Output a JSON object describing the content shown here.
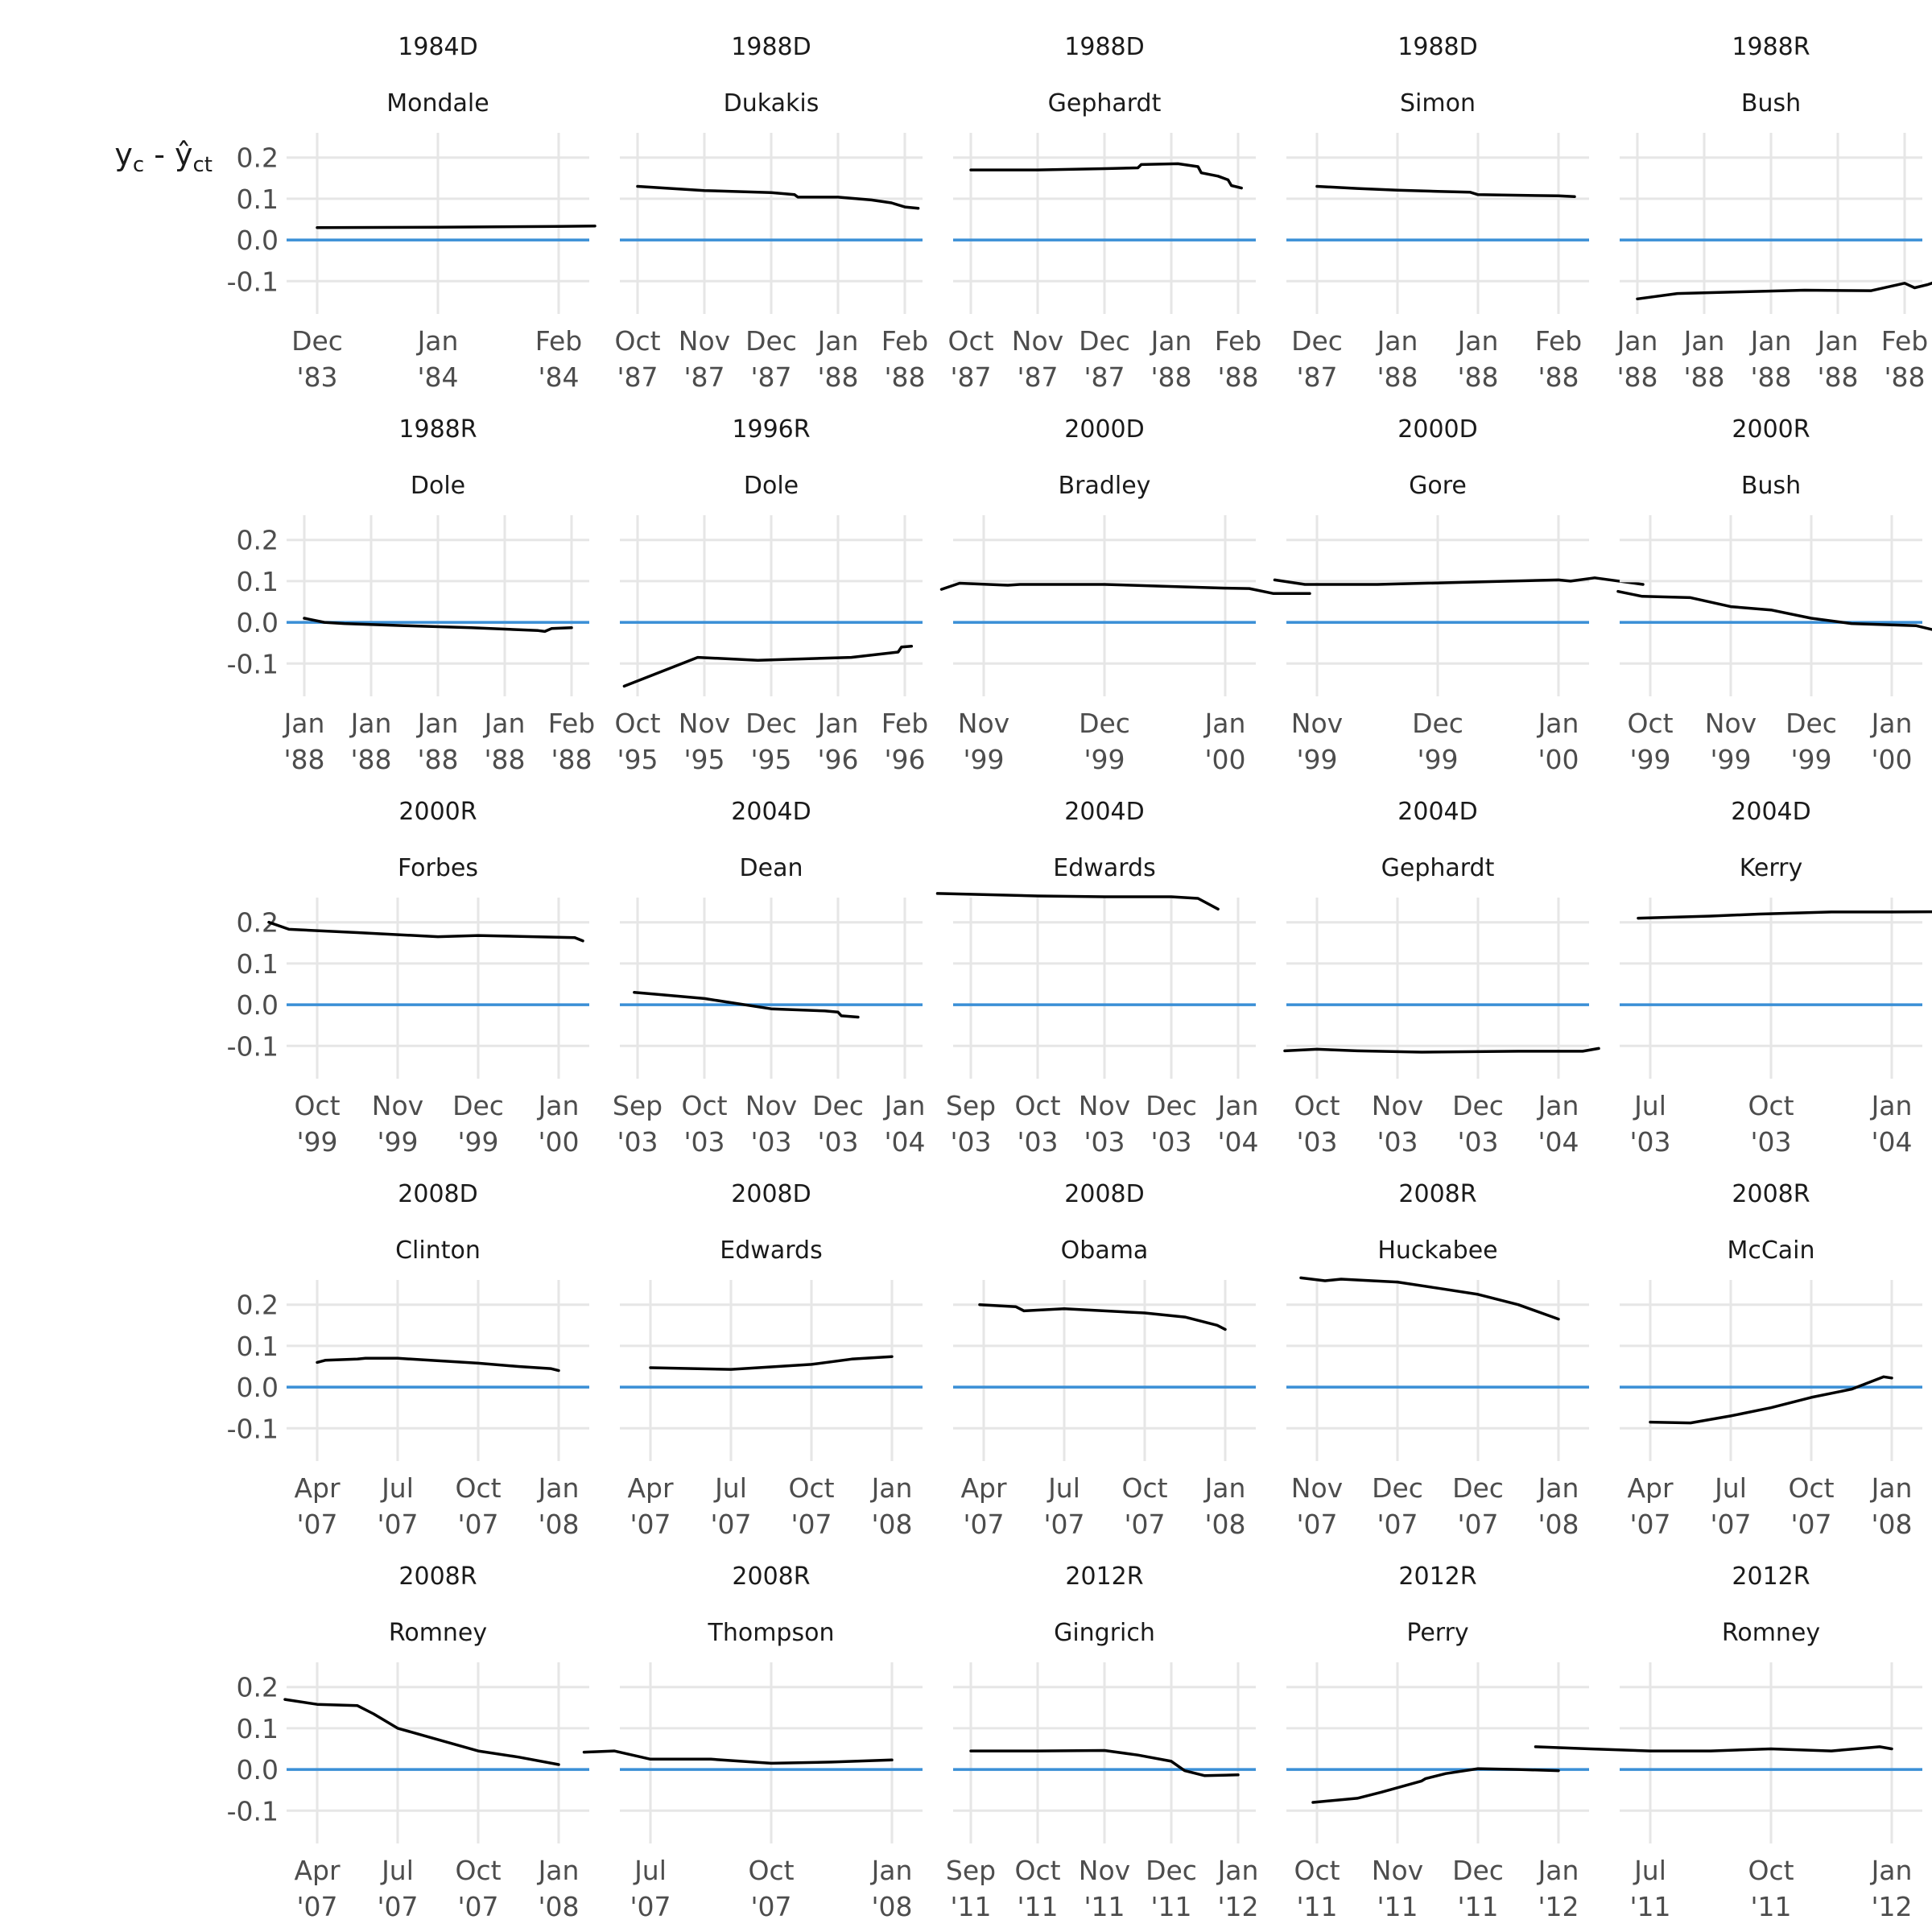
{
  "chart_data": {
    "type": "line",
    "layout": "small-multiples",
    "ylabel": "yₑ - ŷₑₜ",
    "ylabel_parts": {
      "base": "y",
      "sub1": "c",
      "mid": " - ",
      "hat": "ŷ",
      "sub2": "ct"
    },
    "y_ticks": [
      0.2,
      0.1,
      0.0,
      -0.1
    ],
    "y_tick_labels": [
      "0.2",
      "0.1",
      "0.0",
      "-0.1"
    ],
    "ylim": [
      -0.16,
      0.26
    ],
    "reference_line": {
      "y": 0,
      "color": "#3a8fd6"
    },
    "line_color": "#000000",
    "grid": true,
    "panels": [
      {
        "race": "1984D",
        "candidate": "Mondale",
        "xticks": [
          "Dec\n'83",
          "Jan\n'84",
          "Feb\n'84"
        ],
        "x": [
          0,
          1,
          2,
          2.3
        ],
        "y": [
          0.03,
          0.031,
          0.033,
          0.034
        ]
      },
      {
        "race": "1988D",
        "candidate": "Dukakis",
        "xticks": [
          "Oct\n'87",
          "Nov\n'87",
          "Dec\n'87",
          "Jan\n'88",
          "Feb\n'88"
        ],
        "x": [
          0,
          1,
          2,
          2.35,
          2.4,
          3,
          3.5,
          3.8,
          4.0,
          4.2
        ],
        "y": [
          0.13,
          0.12,
          0.115,
          0.11,
          0.104,
          0.104,
          0.097,
          0.09,
          0.08,
          0.077
        ]
      },
      {
        "race": "1988D",
        "candidate": "Gephardt",
        "xticks": [
          "Oct\n'87",
          "Nov\n'87",
          "Dec\n'87",
          "Jan\n'88",
          "Feb\n'88"
        ],
        "x": [
          0,
          1,
          2,
          2.5,
          2.55,
          3.1,
          3.4,
          3.45,
          3.7,
          3.85,
          3.9,
          4.05
        ],
        "y": [
          0.17,
          0.17,
          0.173,
          0.175,
          0.183,
          0.185,
          0.178,
          0.163,
          0.155,
          0.146,
          0.132,
          0.126
        ]
      },
      {
        "race": "1988D",
        "candidate": "Simon",
        "xticks": [
          "Dec\n'87",
          "Jan\n'88",
          "Jan\n'88",
          "Feb\n'88"
        ],
        "x": [
          0,
          0.5,
          1,
          1.5,
          1.9,
          2,
          2.3,
          3.0,
          3.2
        ],
        "y": [
          0.13,
          0.125,
          0.121,
          0.118,
          0.116,
          0.11,
          0.109,
          0.107,
          0.105
        ]
      },
      {
        "race": "1988R",
        "candidate": "Bush",
        "xticks": [
          "Jan\n'88",
          "Jan\n'88",
          "Jan\n'88",
          "Jan\n'88",
          "Feb\n'88"
        ],
        "x": [
          0,
          0.6,
          1.5,
          2.5,
          3.5,
          4.0,
          4.15,
          4.35,
          4.5
        ],
        "y": [
          -0.143,
          -0.13,
          -0.126,
          -0.122,
          -0.123,
          -0.105,
          -0.116,
          -0.108,
          -0.1
        ]
      },
      {
        "race": "1988R",
        "candidate": "Dole",
        "xticks": [
          "Jan\n'88",
          "Jan\n'88",
          "Jan\n'88",
          "Jan\n'88",
          "Feb\n'88"
        ],
        "x": [
          0,
          0.3,
          0.6,
          1.5,
          2.5,
          3.5,
          3.6,
          3.7,
          4.0
        ],
        "y": [
          0.01,
          0.0,
          -0.003,
          -0.008,
          -0.013,
          -0.02,
          -0.022,
          -0.015,
          -0.013
        ]
      },
      {
        "race": "1996R",
        "candidate": "Dole",
        "xticks": [
          "Oct\n'95",
          "Nov\n'95",
          "Dec\n'95",
          "Jan\n'96",
          "Feb\n'96"
        ],
        "x": [
          -0.2,
          0.9,
          1.8,
          3.2,
          3.9,
          3.95,
          4.1
        ],
        "y": [
          -0.155,
          -0.085,
          -0.092,
          -0.085,
          -0.072,
          -0.06,
          -0.058
        ]
      },
      {
        "race": "2000D",
        "candidate": "Bradley",
        "xticks": [
          "Nov\n'99",
          "Dec\n'99",
          "Jan\n'00"
        ],
        "x": [
          -0.35,
          -0.2,
          0.2,
          0.3,
          1.0,
          2.0,
          2.2,
          2.4,
          2.7
        ],
        "y": [
          0.08,
          0.095,
          0.09,
          0.092,
          0.092,
          0.083,
          0.082,
          0.07,
          0.07
        ]
      },
      {
        "race": "2000D",
        "candidate": "Gore",
        "xticks": [
          "Nov\n'99",
          "Dec\n'99",
          "Jan\n'00"
        ],
        "x": [
          -0.35,
          -0.1,
          0.5,
          2.0,
          2.1,
          2.3,
          2.7
        ],
        "y": [
          0.103,
          0.092,
          0.092,
          0.103,
          0.1,
          0.108,
          0.092
        ]
      },
      {
        "race": "2000R",
        "candidate": "Bush",
        "xticks": [
          "Oct\n'99",
          "Nov\n'99",
          "Dec\n'99",
          "Jan\n'00"
        ],
        "x": [
          -0.4,
          -0.1,
          0.5,
          1.0,
          1.5,
          2.0,
          2.5,
          3.3,
          3.6
        ],
        "y": [
          0.075,
          0.063,
          0.06,
          0.038,
          0.03,
          0.01,
          -0.003,
          -0.008,
          -0.022
        ]
      },
      {
        "race": "2000R",
        "candidate": "Forbes",
        "xticks": [
          "Oct\n'99",
          "Nov\n'99",
          "Dec\n'99",
          "Jan\n'00"
        ],
        "x": [
          -0.6,
          -0.35,
          0.5,
          1.5,
          2.0,
          3.2,
          3.3
        ],
        "y": [
          0.2,
          0.183,
          0.175,
          0.165,
          0.168,
          0.163,
          0.155
        ]
      },
      {
        "race": "2004D",
        "candidate": "Dean",
        "xticks": [
          "Sep\n'03",
          "Oct\n'03",
          "Nov\n'03",
          "Dec\n'03",
          "Jan\n'04"
        ],
        "x": [
          -0.05,
          0.3,
          1.0,
          2.0,
          2.8,
          3.0,
          3.05,
          3.3
        ],
        "y": [
          0.03,
          0.025,
          0.015,
          -0.01,
          -0.015,
          -0.018,
          -0.027,
          -0.03
        ]
      },
      {
        "race": "2004D",
        "candidate": "Edwards",
        "xticks": [
          "Sep\n'03",
          "Oct\n'03",
          "Nov\n'03",
          "Dec\n'03",
          "Jan\n'04"
        ],
        "x": [
          -0.5,
          0,
          1.0,
          2.0,
          3.0,
          3.4,
          3.7
        ],
        "y": [
          0.27,
          0.268,
          0.264,
          0.262,
          0.262,
          0.258,
          0.232
        ]
      },
      {
        "race": "2004D",
        "candidate": "Gephardt",
        "xticks": [
          "Oct\n'03",
          "Nov\n'03",
          "Dec\n'03",
          "Jan\n'04"
        ],
        "x": [
          -0.4,
          0,
          0.5,
          1.3,
          2.5,
          3.3,
          3.5
        ],
        "y": [
          -0.112,
          -0.108,
          -0.112,
          -0.115,
          -0.113,
          -0.113,
          -0.106
        ]
      },
      {
        "race": "2004D",
        "candidate": "Kerry",
        "xticks": [
          "Jul\n'03",
          "Oct\n'03",
          "Jan\n'04"
        ],
        "x": [
          -0.1,
          0.5,
          0.9,
          1.5,
          2.0,
          3.0,
          3.2,
          3.3
        ],
        "y": [
          0.21,
          0.215,
          0.22,
          0.225,
          0.225,
          0.227,
          0.223,
          0.21
        ]
      },
      {
        "race": "2008D",
        "candidate": "Clinton",
        "xticks": [
          "Apr\n'07",
          "Jul\n'07",
          "Oct\n'07",
          "Jan\n'08"
        ],
        "x": [
          0,
          0.1,
          0.5,
          0.6,
          1.0,
          2.0,
          2.5,
          2.9,
          3.0
        ],
        "y": [
          0.06,
          0.065,
          0.068,
          0.07,
          0.07,
          0.058,
          0.05,
          0.045,
          0.04
        ]
      },
      {
        "race": "2008D",
        "candidate": "Edwards",
        "xticks": [
          "Apr\n'07",
          "Jul\n'07",
          "Oct\n'07",
          "Jan\n'08"
        ],
        "x": [
          0,
          1.0,
          2.0,
          2.5,
          3.0
        ],
        "y": [
          0.047,
          0.043,
          0.055,
          0.068,
          0.074
        ]
      },
      {
        "race": "2008D",
        "candidate": "Obama",
        "xticks": [
          "Apr\n'07",
          "Jul\n'07",
          "Oct\n'07",
          "Jan\n'08"
        ],
        "x": [
          -0.05,
          0.4,
          0.5,
          1.0,
          2.0,
          2.5,
          2.9,
          3.0
        ],
        "y": [
          0.2,
          0.195,
          0.185,
          0.19,
          0.18,
          0.17,
          0.15,
          0.14
        ]
      },
      {
        "race": "2008R",
        "candidate": "Huckabee",
        "xticks": [
          "Nov\n'07",
          "Dec\n'07",
          "Dec\n'07",
          "Jan\n'08"
        ],
        "x": [
          -0.2,
          0.1,
          0.3,
          1.0,
          1.5,
          2.0,
          2.5,
          3.0
        ],
        "y": [
          0.265,
          0.258,
          0.262,
          0.255,
          0.24,
          0.225,
          0.2,
          0.165
        ]
      },
      {
        "race": "2008R",
        "candidate": "McCain",
        "xticks": [
          "Apr\n'07",
          "Jul\n'07",
          "Oct\n'07",
          "Jan\n'08"
        ],
        "x": [
          0,
          0.5,
          1.0,
          1.5,
          2.0,
          2.5,
          2.9,
          3.0
        ],
        "y": [
          -0.085,
          -0.087,
          -0.07,
          -0.05,
          -0.025,
          -0.005,
          0.025,
          0.022
        ]
      },
      {
        "race": "2008R",
        "candidate": "Romney",
        "xticks": [
          "Apr\n'07",
          "Jul\n'07",
          "Oct\n'07",
          "Jan\n'08"
        ],
        "x": [
          -0.4,
          0,
          0.5,
          0.7,
          1.0,
          2.0,
          2.5,
          3.0
        ],
        "y": [
          0.17,
          0.158,
          0.155,
          0.135,
          0.1,
          0.045,
          0.03,
          0.012
        ]
      },
      {
        "race": "2008R",
        "candidate": "Thompson",
        "xticks": [
          "Jul\n'07",
          "Oct\n'07",
          "Jan\n'08"
        ],
        "x": [
          -0.55,
          -0.3,
          0,
          0.5,
          1.0,
          1.5,
          2.0
        ],
        "y": [
          0.042,
          0.045,
          0.025,
          0.025,
          0.015,
          0.018,
          0.023
        ]
      },
      {
        "race": "2012R",
        "candidate": "Gingrich",
        "xticks": [
          "Sep\n'11",
          "Oct\n'11",
          "Nov\n'11",
          "Dec\n'11",
          "Jan\n'12"
        ],
        "x": [
          0,
          1.0,
          2.0,
          2.5,
          3.0,
          3.2,
          3.5,
          4.0
        ],
        "y": [
          0.045,
          0.045,
          0.046,
          0.035,
          0.02,
          -0.003,
          -0.015,
          -0.013
        ]
      },
      {
        "race": "2012R",
        "candidate": "Perry",
        "xticks": [
          "Oct\n'11",
          "Nov\n'11",
          "Dec\n'11",
          "Jan\n'12"
        ],
        "x": [
          -0.05,
          0.5,
          0.8,
          1.3,
          1.35,
          1.6,
          2.0,
          2.5,
          3.0
        ],
        "y": [
          -0.08,
          -0.07,
          -0.055,
          -0.028,
          -0.022,
          -0.01,
          0.002,
          0.0,
          -0.003
        ]
      },
      {
        "race": "2012R",
        "candidate": "Romney",
        "xticks": [
          "Jul\n'11",
          "Oct\n'11",
          "Jan\n'12"
        ],
        "x": [
          -0.95,
          -0.5,
          0,
          0.5,
          1.0,
          1.5,
          1.9,
          2.0
        ],
        "y": [
          0.055,
          0.05,
          0.045,
          0.045,
          0.05,
          0.045,
          0.055,
          0.05
        ]
      }
    ]
  }
}
